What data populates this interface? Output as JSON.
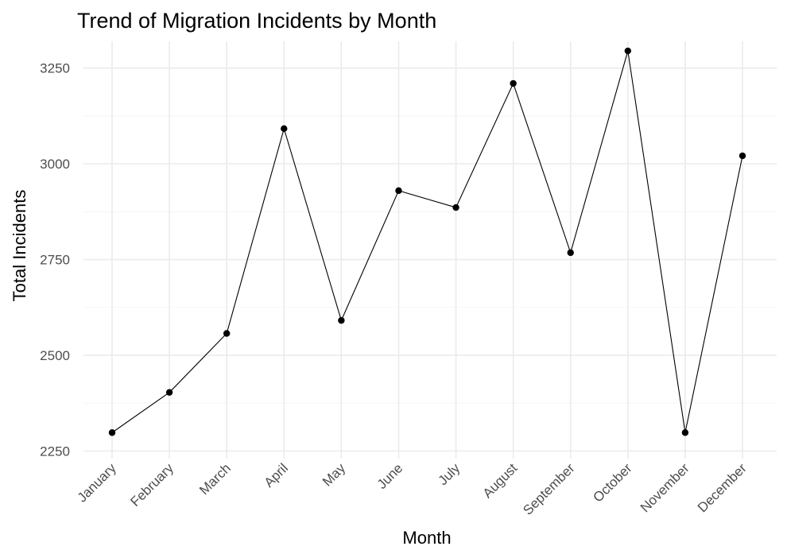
{
  "chart_data": {
    "type": "line",
    "title": "Trend of Migration Incidents by Month",
    "xlabel": "Month",
    "ylabel": "Total Incidents",
    "categories": [
      "January",
      "February",
      "March",
      "April",
      "May",
      "June",
      "July",
      "August",
      "September",
      "October",
      "November",
      "December"
    ],
    "values": [
      2298,
      2403,
      2557,
      3092,
      2591,
      2930,
      2886,
      3210,
      2768,
      3295,
      2298,
      3021
    ],
    "ylim": [
      2230,
      3320
    ],
    "yticks": [
      2250,
      2500,
      2750,
      3000,
      3250
    ],
    "grid": true,
    "legend": "none",
    "line_color": "#000000",
    "point_color": "#000000"
  }
}
